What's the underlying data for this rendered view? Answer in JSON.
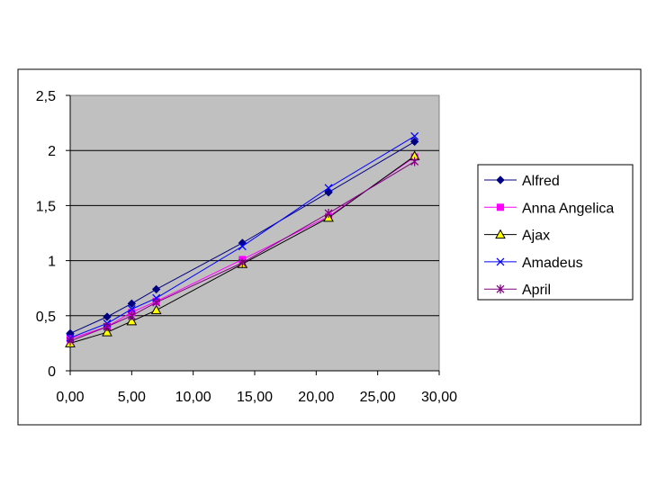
{
  "chart_data": {
    "type": "line",
    "title": "",
    "xlabel": "",
    "ylabel": "",
    "xlim": [
      0,
      30
    ],
    "ylim": [
      0,
      2.5
    ],
    "x_ticks": [
      "0,00",
      "5,00",
      "10,00",
      "15,00",
      "20,00",
      "25,00",
      "30,00"
    ],
    "y_ticks": [
      "0",
      "0,5",
      "1",
      "1,5",
      "2",
      "2,5"
    ],
    "grid": "horizontal",
    "plot_background": "#c0c0c0",
    "legend_position": "right",
    "series": [
      {
        "name": "Alfred",
        "color": "#000080",
        "marker": "diamond",
        "points": [
          [
            0,
            0.34
          ],
          [
            3,
            0.49
          ],
          [
            5,
            0.61
          ],
          [
            7,
            0.74
          ],
          [
            14,
            1.16
          ],
          [
            21,
            1.62
          ],
          [
            28,
            2.08
          ]
        ]
      },
      {
        "name": "Anna Angelica",
        "color": "#ff00ff",
        "marker": "square",
        "points": [
          [
            0,
            0.29
          ],
          [
            3,
            0.4
          ],
          [
            5,
            0.53
          ],
          [
            7,
            0.63
          ],
          [
            14,
            1.01
          ],
          [
            21,
            1.4
          ],
          [
            28,
            1.94
          ]
        ]
      },
      {
        "name": "Ajax",
        "color": "#ffff00",
        "marker": "triangle",
        "points": [
          [
            0,
            0.25
          ],
          [
            3,
            0.35
          ],
          [
            5,
            0.45
          ],
          [
            7,
            0.55
          ],
          [
            14,
            0.97
          ],
          [
            21,
            1.39
          ],
          [
            28,
            1.95
          ]
        ]
      },
      {
        "name": "Amadeus",
        "color": "#0000ff",
        "marker": "x",
        "points": [
          [
            0,
            0.3
          ],
          [
            3,
            0.43
          ],
          [
            5,
            0.56
          ],
          [
            7,
            0.66
          ],
          [
            14,
            1.13
          ],
          [
            21,
            1.66
          ],
          [
            28,
            2.13
          ]
        ]
      },
      {
        "name": "April",
        "color": "#800080",
        "marker": "asterisk",
        "points": [
          [
            0,
            0.27
          ],
          [
            3,
            0.4
          ],
          [
            5,
            0.5
          ],
          [
            7,
            0.62
          ],
          [
            14,
            0.98
          ],
          [
            21,
            1.43
          ],
          [
            28,
            1.9
          ]
        ]
      }
    ]
  }
}
